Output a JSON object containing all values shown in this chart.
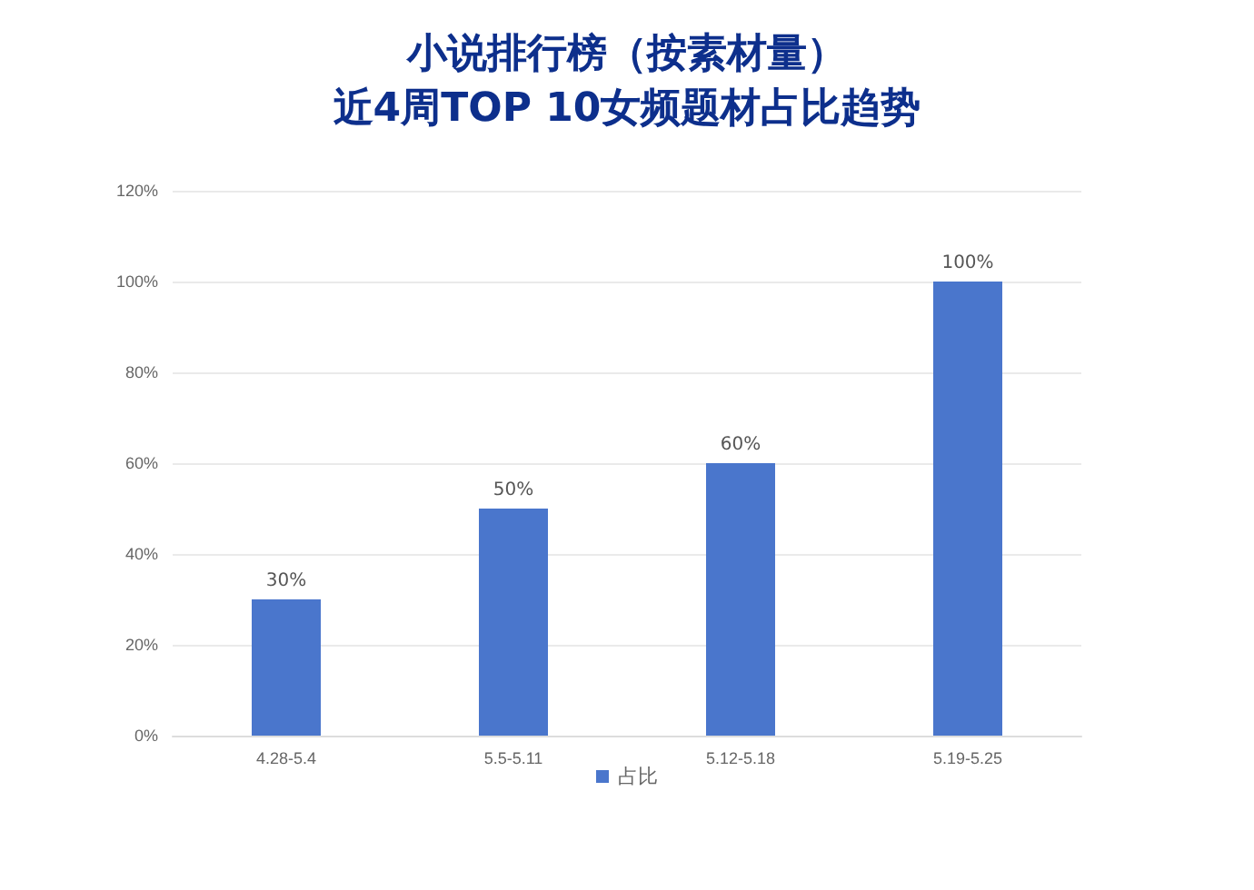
{
  "chart_data": {
    "type": "bar",
    "title": "小说排行榜（按素材量）",
    "subtitle": "近4周TOP 10女频题材占比趋势",
    "categories": [
      "4.28-5.4",
      "5.5-5.11",
      "5.12-5.18",
      "5.19-5.25"
    ],
    "series": [
      {
        "name": "占比",
        "color": "#4a76cc",
        "values": [
          30,
          50,
          60,
          100
        ],
        "value_labels": [
          "30%",
          "50%",
          "60%",
          "100%"
        ]
      }
    ],
    "ylim": [
      0,
      120
    ],
    "yticks": [
      {
        "value": 0,
        "label": "0%"
      },
      {
        "value": 20,
        "label": "20%"
      },
      {
        "value": 40,
        "label": "40%"
      },
      {
        "value": 60,
        "label": "60%"
      },
      {
        "value": 80,
        "label": "80%"
      },
      {
        "value": 100,
        "label": "100%"
      },
      {
        "value": 120,
        "label": "120%"
      }
    ],
    "grid": "y",
    "legend": "bottom"
  }
}
